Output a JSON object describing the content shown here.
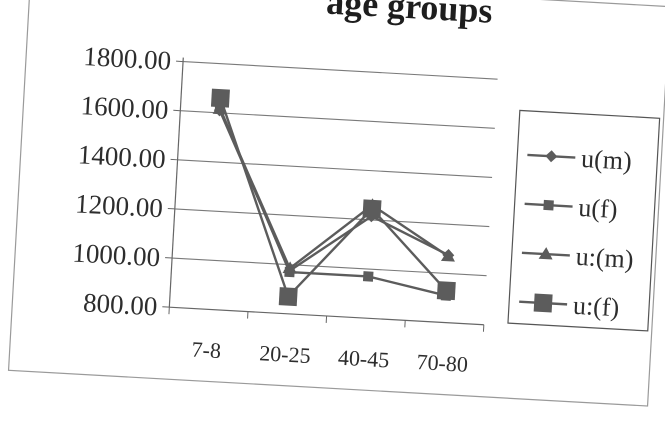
{
  "chart_data": {
    "type": "line",
    "title": "age groups",
    "categories": [
      "7-8",
      "20-25",
      "40-45",
      "70-80"
    ],
    "ylim": [
      800,
      1800
    ],
    "yticks": [
      800,
      1000,
      1200,
      1400,
      1600,
      1800
    ],
    "ytick_labels": [
      "800.00",
      "1000.00",
      "1200.00",
      "1400.00",
      "1600.00",
      "1800.00"
    ],
    "grid": true,
    "legend": "right",
    "series": [
      {
        "name": "u(m)",
        "marker": "diamond",
        "values": [
          1610,
          975,
          1215,
          1075
        ]
      },
      {
        "name": "u(f)",
        "marker": "square-small",
        "values": [
          1620,
          970,
          970,
          910
        ]
      },
      {
        "name": "u:(m)",
        "marker": "triangle",
        "values": [
          1615,
          985,
          1260,
          1070
        ]
      },
      {
        "name": "u:(f)",
        "marker": "square-large",
        "values": [
          1660,
          870,
          1245,
          930
        ]
      }
    ],
    "line_color": "#5c5c5c"
  }
}
